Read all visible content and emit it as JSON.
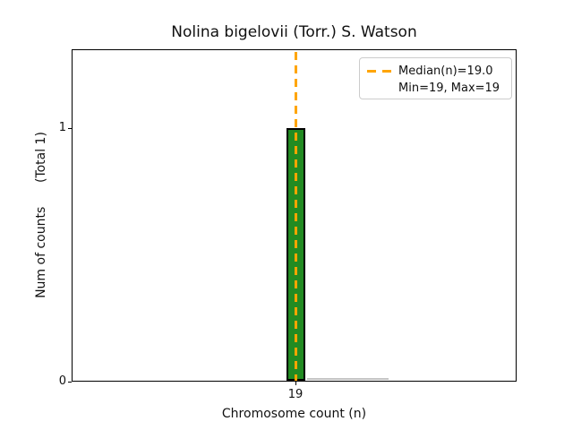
{
  "chart_data": {
    "type": "bar",
    "title": "Nolina bigelovii (Torr.) S. Watson",
    "xlabel": "Chromosome count (n)",
    "ylabel": "Num of counts      (Total 1)",
    "categories": [
      "19"
    ],
    "values": [
      1
    ],
    "x_tick_labels": [
      "19"
    ],
    "y_tick_labels": [
      "0",
      "1"
    ],
    "ylim": [
      0,
      1.31
    ],
    "grid": false,
    "bar_color": "#228B22",
    "bar_edge_color": "#000000",
    "median_line": {
      "value": 19.0,
      "color": "#FFA500",
      "style": "dashed",
      "orientation": "vertical"
    },
    "legend": {
      "position": "upper right",
      "entries": [
        {
          "swatch": "orange-dashed-line",
          "label": "Median(n)=19.0"
        },
        {
          "swatch": "none",
          "label": "Min=19, Max=19"
        }
      ]
    },
    "stats": {
      "median_n": 19.0,
      "min_n": 19,
      "max_n": 19,
      "total_counts": 1
    }
  }
}
